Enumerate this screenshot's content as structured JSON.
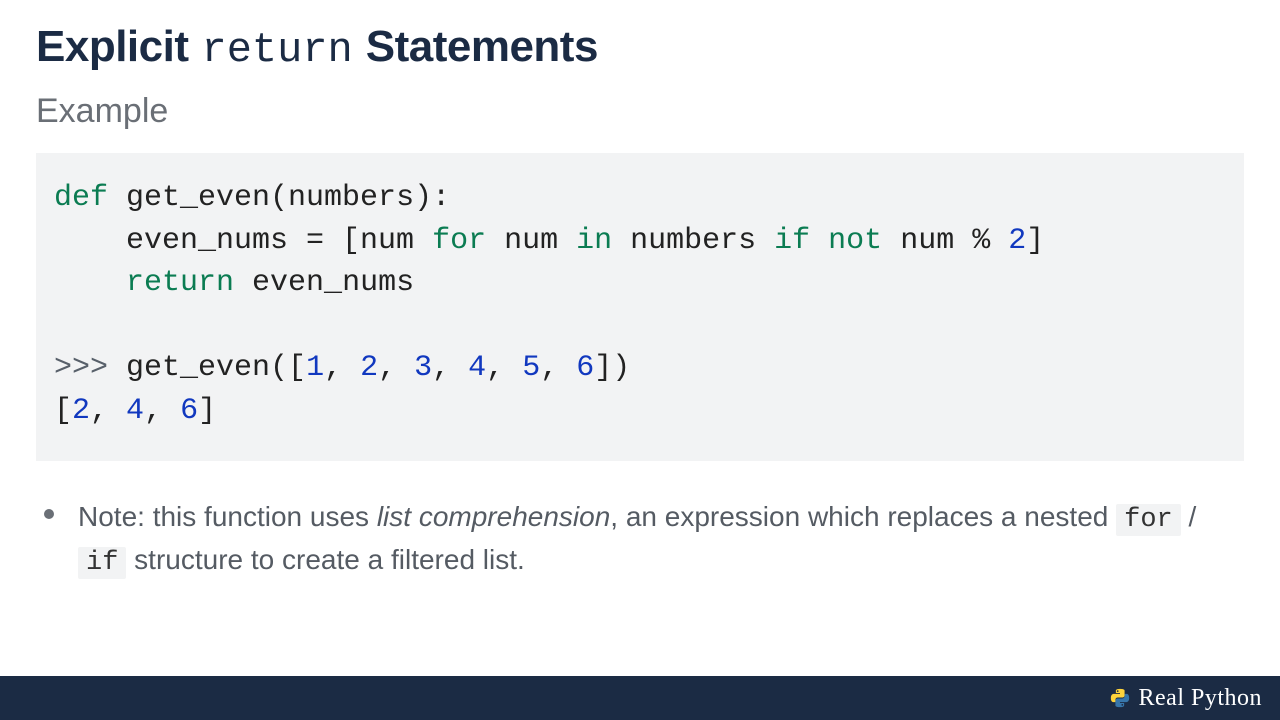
{
  "title": {
    "part1": "Explicit",
    "code": "return",
    "part2": "Statements"
  },
  "subtitle": "Example",
  "code": {
    "tokens": [
      {
        "t": "def",
        "c": "kw"
      },
      {
        "t": " get_even(numbers):\n"
      },
      {
        "t": "    even_nums = [num "
      },
      {
        "t": "for",
        "c": "kw"
      },
      {
        "t": " num "
      },
      {
        "t": "in",
        "c": "kw"
      },
      {
        "t": " numbers "
      },
      {
        "t": "if",
        "c": "kw"
      },
      {
        "t": " "
      },
      {
        "t": "not",
        "c": "kw"
      },
      {
        "t": " num % "
      },
      {
        "t": "2",
        "c": "num"
      },
      {
        "t": "]\n"
      },
      {
        "t": "    "
      },
      {
        "t": "return",
        "c": "kw"
      },
      {
        "t": " even_nums\n"
      },
      {
        "t": "\n"
      },
      {
        "t": ">>>",
        "c": "prompt"
      },
      {
        "t": " get_even(["
      },
      {
        "t": "1",
        "c": "num"
      },
      {
        "t": ", "
      },
      {
        "t": "2",
        "c": "num"
      },
      {
        "t": ", "
      },
      {
        "t": "3",
        "c": "num"
      },
      {
        "t": ", "
      },
      {
        "t": "4",
        "c": "num"
      },
      {
        "t": ", "
      },
      {
        "t": "5",
        "c": "num"
      },
      {
        "t": ", "
      },
      {
        "t": "6",
        "c": "num"
      },
      {
        "t": "])\n"
      },
      {
        "t": "["
      },
      {
        "t": "2",
        "c": "num"
      },
      {
        "t": ", "
      },
      {
        "t": "4",
        "c": "num"
      },
      {
        "t": ", "
      },
      {
        "t": "6",
        "c": "num"
      },
      {
        "t": "]"
      }
    ],
    "background": "#f2f3f4",
    "keyword_color": "#0b7c52",
    "number_color": "#1138bf",
    "prompt_color": "#58606a",
    "fontsize": 30
  },
  "note": {
    "before_em": "Note: this function uses ",
    "em": "list comprehension",
    "after_em": ", an expression which replaces a nested ",
    "code1": "for",
    "slash": " / ",
    "code2": "if",
    "tail": " structure to create a filtered list."
  },
  "footer": {
    "brand": "Real Python",
    "bg": "#1b2b44"
  }
}
